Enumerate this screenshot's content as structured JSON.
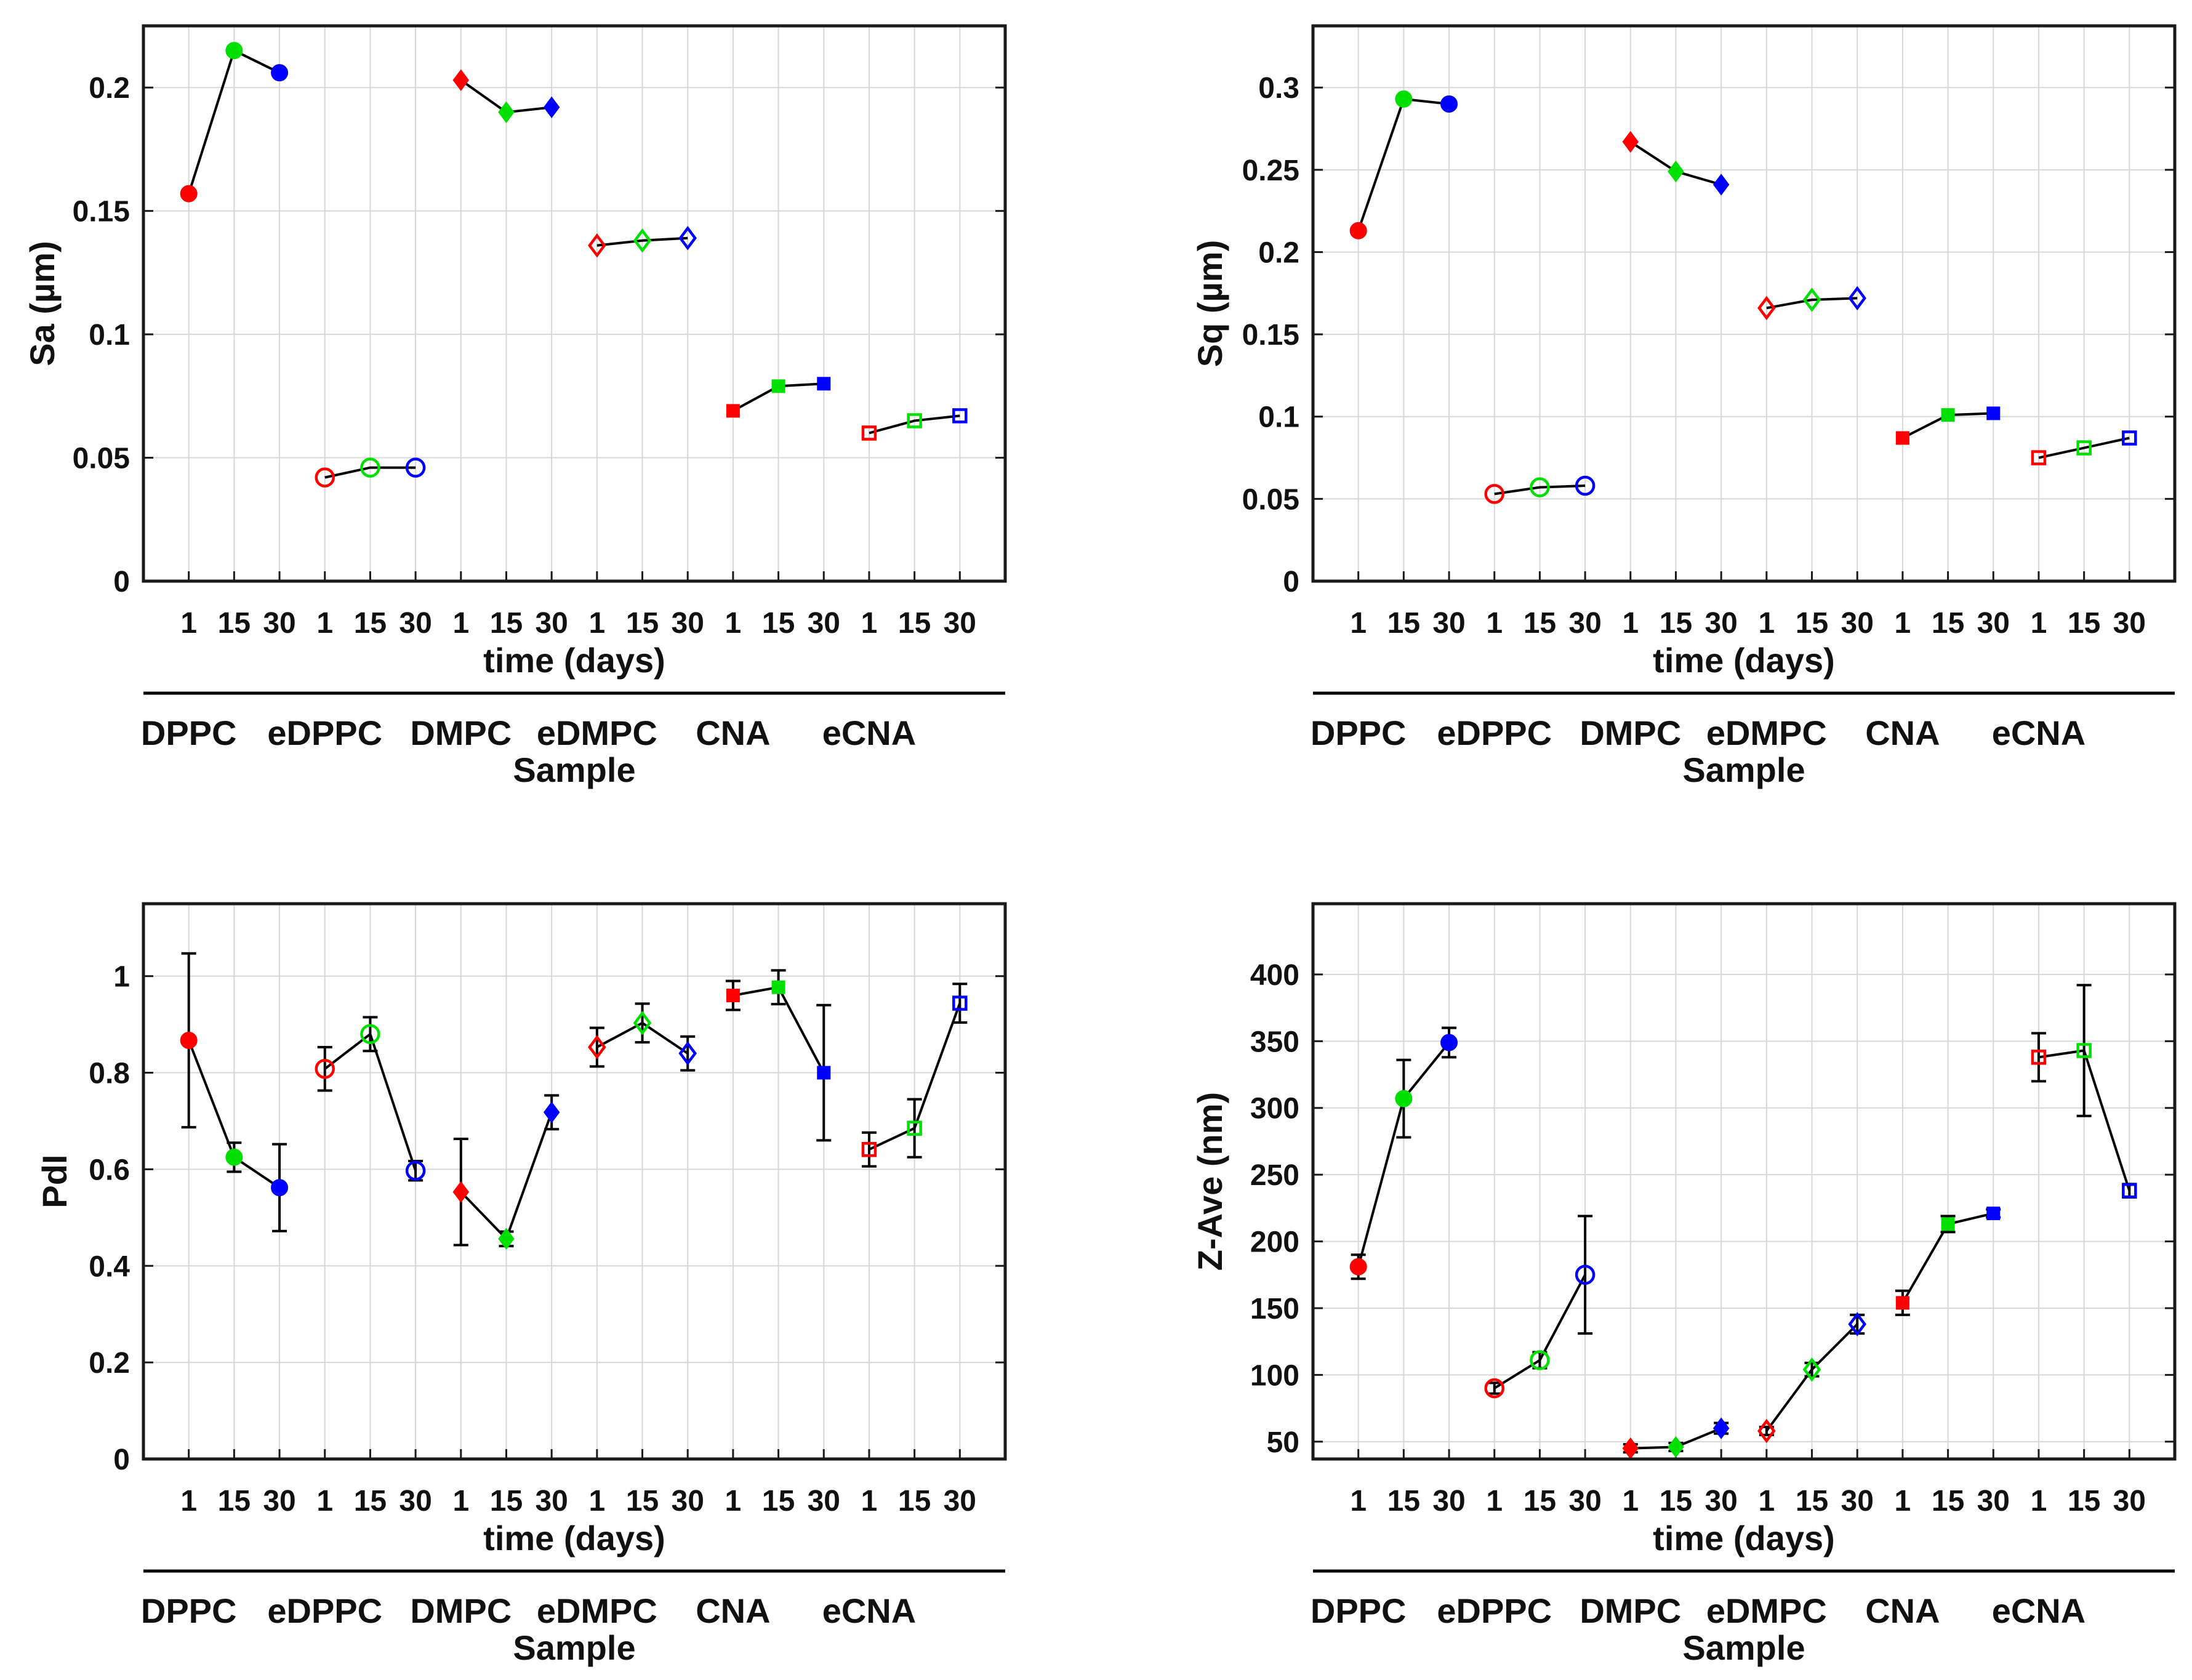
{
  "chart_data": [
    {
      "type": "scatter",
      "ylabel": "Sa (µm)",
      "xlabel": "time (days)",
      "group_label": "Sample",
      "ylim": [
        0,
        0.225
      ],
      "yticks": [
        0,
        0.05,
        0.1,
        0.15,
        0.2
      ],
      "ytick_labels": [
        "0",
        "0.05",
        "0.1",
        "0.15",
        "0.2"
      ],
      "x_tick_labels": [
        "1",
        "15",
        "30",
        "1",
        "15",
        "30",
        "1",
        "15",
        "30",
        "1",
        "15",
        "30",
        "1",
        "15",
        "30",
        "1",
        "15",
        "30"
      ],
      "groups": [
        {
          "name": "DPPC",
          "marker": "circle",
          "filled": true,
          "values": [
            0.157,
            0.215,
            0.206
          ]
        },
        {
          "name": "eDPPC",
          "marker": "circle",
          "filled": false,
          "values": [
            0.042,
            0.046,
            0.046
          ]
        },
        {
          "name": "DMPC",
          "marker": "diamond",
          "filled": true,
          "values": [
            0.203,
            0.19,
            0.192
          ]
        },
        {
          "name": "eDMPC",
          "marker": "diamond",
          "filled": false,
          "values": [
            0.136,
            0.138,
            0.139
          ]
        },
        {
          "name": "CNA",
          "marker": "square",
          "filled": true,
          "values": [
            0.069,
            0.079,
            0.08
          ]
        },
        {
          "name": "eCNA",
          "marker": "square",
          "filled": false,
          "values": [
            0.06,
            0.065,
            0.067
          ]
        }
      ]
    },
    {
      "type": "scatter",
      "ylabel": "Sq (µm)",
      "xlabel": "time (days)",
      "group_label": "Sample",
      "ylim": [
        0,
        0.3375
      ],
      "yticks": [
        0,
        0.05,
        0.1,
        0.15,
        0.2,
        0.25,
        0.3
      ],
      "ytick_labels": [
        "0",
        "0.05",
        "0.1",
        "0.15",
        "0.2",
        "0.25",
        "0.3"
      ],
      "x_tick_labels": [
        "1",
        "15",
        "30",
        "1",
        "15",
        "30",
        "1",
        "15",
        "30",
        "1",
        "15",
        "30",
        "1",
        "15",
        "30",
        "1",
        "15",
        "30"
      ],
      "groups": [
        {
          "name": "DPPC",
          "marker": "circle",
          "filled": true,
          "values": [
            0.213,
            0.293,
            0.29
          ]
        },
        {
          "name": "eDPPC",
          "marker": "circle",
          "filled": false,
          "values": [
            0.053,
            0.057,
            0.058
          ]
        },
        {
          "name": "DMPC",
          "marker": "diamond",
          "filled": true,
          "values": [
            0.267,
            0.249,
            0.241
          ]
        },
        {
          "name": "eDMPC",
          "marker": "diamond",
          "filled": false,
          "values": [
            0.166,
            0.171,
            0.172
          ]
        },
        {
          "name": "CNA",
          "marker": "square",
          "filled": true,
          "values": [
            0.087,
            0.101,
            0.102
          ]
        },
        {
          "name": "eCNA",
          "marker": "square",
          "filled": false,
          "values": [
            0.075,
            0.081,
            0.087
          ]
        }
      ]
    },
    {
      "type": "scatter",
      "ylabel": "PdI",
      "xlabel": "time (days)",
      "group_label": "Sample",
      "ylim": [
        0,
        1.15
      ],
      "yticks": [
        0,
        0.2,
        0.4,
        0.6,
        0.8,
        1
      ],
      "ytick_labels": [
        "0",
        "0.2",
        "0.4",
        "0.6",
        "0.8",
        "1"
      ],
      "x_tick_labels": [
        "1",
        "15",
        "30",
        "1",
        "15",
        "30",
        "1",
        "15",
        "30",
        "1",
        "15",
        "30",
        "1",
        "15",
        "30",
        "1",
        "15",
        "30"
      ],
      "groups": [
        {
          "name": "DPPC",
          "marker": "circle",
          "filled": true,
          "values": [
            0.867,
            0.625,
            0.562
          ],
          "errors": [
            0.18,
            0.03,
            0.09
          ]
        },
        {
          "name": "eDPPC",
          "marker": "circle",
          "filled": false,
          "values": [
            0.808,
            0.88,
            0.597
          ],
          "errors": [
            0.045,
            0.035,
            0.02
          ]
        },
        {
          "name": "DMPC",
          "marker": "diamond",
          "filled": true,
          "values": [
            0.553,
            0.456,
            0.718
          ],
          "errors": [
            0.11,
            0.015,
            0.035
          ]
        },
        {
          "name": "eDMPC",
          "marker": "diamond",
          "filled": false,
          "values": [
            0.853,
            0.903,
            0.84
          ],
          "errors": [
            0.04,
            0.04,
            0.035
          ]
        },
        {
          "name": "CNA",
          "marker": "square",
          "filled": true,
          "values": [
            0.96,
            0.977,
            0.8
          ],
          "errors": [
            0.03,
            0.035,
            0.14
          ]
        },
        {
          "name": "eCNA",
          "marker": "square",
          "filled": false,
          "values": [
            0.641,
            0.685,
            0.944
          ],
          "errors": [
            0.035,
            0.06,
            0.04
          ]
        }
      ]
    },
    {
      "type": "scatter",
      "ylabel": "Z-Ave (nm)",
      "xlabel": "time (days)",
      "group_label": "Sample",
      "ylim": [
        37,
        453
      ],
      "yticks": [
        50,
        100,
        150,
        200,
        250,
        300,
        350,
        400
      ],
      "ytick_labels": [
        "50",
        "100",
        "150",
        "200",
        "250",
        "300",
        "350",
        "400"
      ],
      "x_tick_labels": [
        "1",
        "15",
        "30",
        "1",
        "15",
        "30",
        "1",
        "15",
        "30",
        "1",
        "15",
        "30",
        "1",
        "15",
        "30",
        "1",
        "15",
        "30"
      ],
      "groups": [
        {
          "name": "DPPC",
          "marker": "circle",
          "filled": true,
          "values": [
            181,
            307,
            349
          ],
          "errors": [
            9,
            29,
            11
          ]
        },
        {
          "name": "eDPPC",
          "marker": "circle",
          "filled": false,
          "values": [
            90,
            111,
            175
          ],
          "errors": [
            4,
            6,
            44
          ]
        },
        {
          "name": "DMPC",
          "marker": "diamond",
          "filled": true,
          "values": [
            45,
            46,
            60
          ],
          "errors": [
            3,
            3,
            4
          ]
        },
        {
          "name": "eDMPC",
          "marker": "diamond",
          "filled": false,
          "values": [
            58,
            104,
            138
          ],
          "errors": [
            3,
            5,
            7
          ]
        },
        {
          "name": "CNA",
          "marker": "square",
          "filled": true,
          "values": [
            154,
            213,
            221
          ],
          "errors": [
            9,
            6,
            3
          ]
        },
        {
          "name": "eCNA",
          "marker": "square",
          "filled": false,
          "values": [
            338,
            343,
            238
          ],
          "errors": [
            18,
            49,
            5
          ]
        }
      ]
    }
  ],
  "style": {
    "time_colors": [
      "#ff0000",
      "#00e000",
      "#0000ff"
    ],
    "line_color": "#000000",
    "grid_color": "#d7d7d7",
    "axis_color": "#1a1a1a"
  }
}
